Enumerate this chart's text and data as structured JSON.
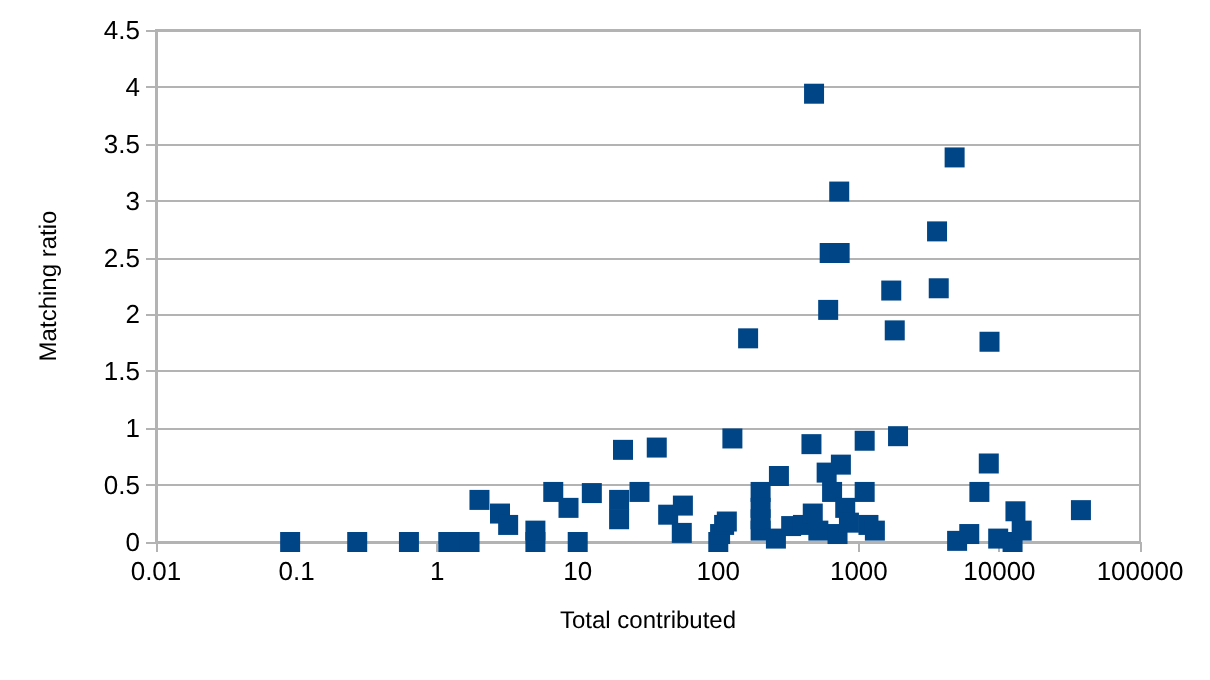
{
  "chart_data": {
    "type": "scatter",
    "xlabel": "Total contributed",
    "ylabel": "Matching ratio",
    "log": "x",
    "grid": "y",
    "marker": "square",
    "xlim": [
      0.01,
      100000
    ],
    "xticks": [
      0.01,
      0.1,
      1,
      10,
      100,
      1000,
      10000,
      100000
    ],
    "ylim": [
      0,
      4.5
    ],
    "yticks": [
      0,
      0.5,
      1,
      1.5,
      2,
      2.5,
      3,
      3.5,
      4,
      4.5
    ],
    "series": [
      {
        "color": "#004586",
        "x": [
          0.09,
          0.27,
          0.63,
          1.2,
          1.45,
          1.7,
          2.0,
          2.8,
          3.2,
          5,
          5,
          6.7,
          8.6,
          10,
          12.6,
          19.7,
          19.7,
          21,
          27.5,
          36.5,
          44,
          55,
          56,
          100,
          103,
          110,
          115,
          126,
          163,
          200,
          200,
          200,
          200,
          257,
          270,
          330,
          400,
          460,
          470,
          480,
          515,
          590,
          605,
          620,
          645,
          705,
          725,
          730,
          745,
          800,
          850,
          1100,
          1100,
          1170,
          1300,
          1700,
          1800,
          1900,
          3600,
          3700,
          4800,
          5000,
          6100,
          7200,
          8400,
          8500,
          9800,
          12400,
          13000,
          14400,
          38000
        ],
        "values": [
          0,
          0,
          0,
          0,
          0,
          0,
          0.37,
          0.25,
          0.15,
          0,
          0.1,
          0.44,
          0.3,
          0,
          0.43,
          0.37,
          0.2,
          0.81,
          0.44,
          0.83,
          0.24,
          0.08,
          0.32,
          0,
          0.07,
          0.15,
          0.18,
          0.91,
          1.79,
          0.44,
          0.3,
          0.1,
          0.2,
          0.03,
          0.58,
          0.14,
          0.15,
          0.86,
          0.25,
          3.94,
          0.1,
          0.61,
          2.04,
          2.54,
          0.44,
          0.07,
          3.08,
          2.54,
          0.68,
          0.3,
          0.17,
          0.44,
          0.89,
          0.15,
          0.1,
          2.21,
          1.86,
          0.93,
          2.73,
          2.23,
          3.38,
          0.01,
          0.07,
          0.44,
          0.69,
          1.76,
          0.03,
          0,
          0.27,
          0.1,
          0.28
        ]
      }
    ]
  }
}
